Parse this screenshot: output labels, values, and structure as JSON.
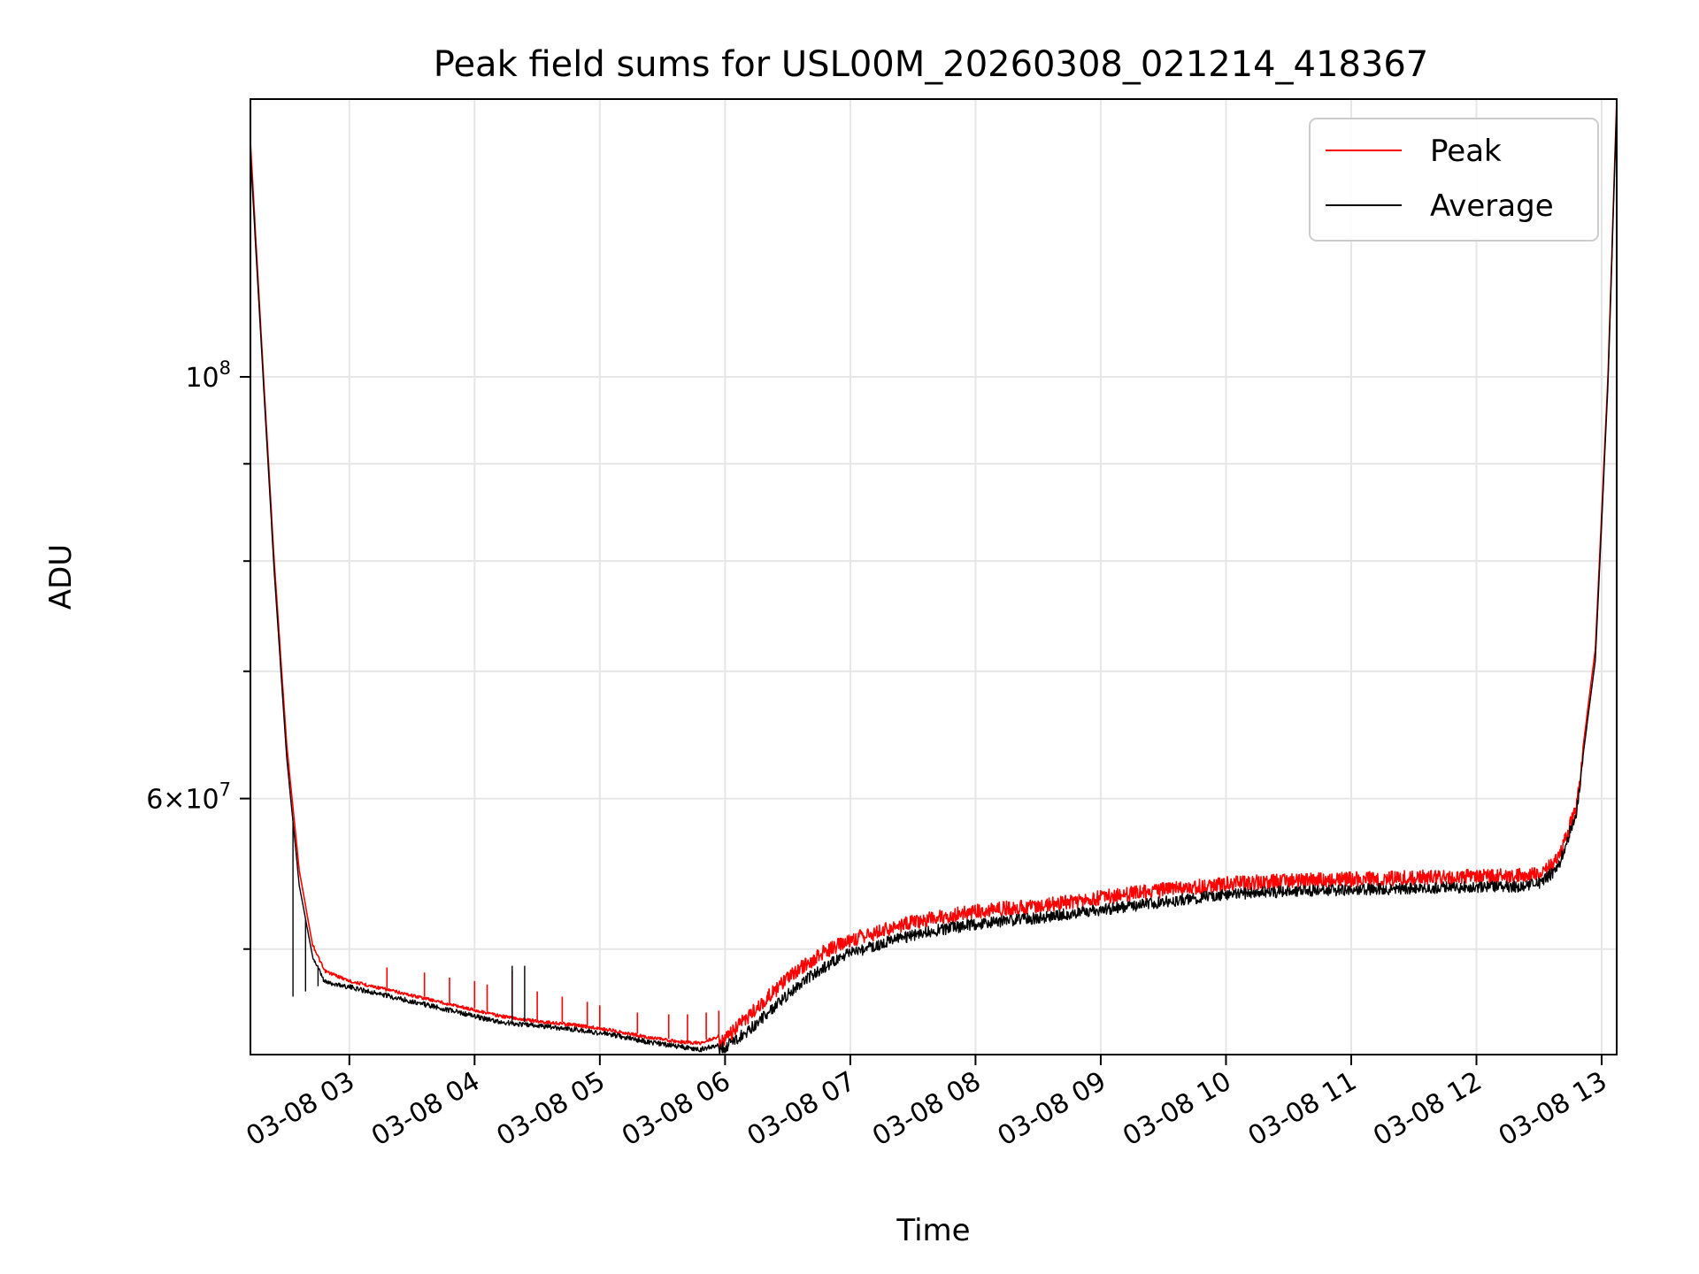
{
  "chart_data": {
    "type": "line",
    "title": "Peak field sums for USL00M_20260308_021214_418367",
    "xlabel": "Time",
    "ylabel": "ADU",
    "yscale": "log",
    "grid": true,
    "legend_location": "top-right",
    "x_unit": "hour of 2026-03-08",
    "xlim": [
      2.21,
      13.12
    ],
    "ylim": [
      44000000,
      140000000
    ],
    "x_ticks": [
      {
        "value": 3,
        "label": "03-08 03"
      },
      {
        "value": 4,
        "label": "03-08 04"
      },
      {
        "value": 5,
        "label": "03-08 05"
      },
      {
        "value": 6,
        "label": "03-08 06"
      },
      {
        "value": 7,
        "label": "03-08 07"
      },
      {
        "value": 8,
        "label": "03-08 08"
      },
      {
        "value": 9,
        "label": "03-08 09"
      },
      {
        "value": 10,
        "label": "03-08 10"
      },
      {
        "value": 11,
        "label": "03-08 11"
      },
      {
        "value": 12,
        "label": "03-08 12"
      },
      {
        "value": 13,
        "label": "03-08 13"
      }
    ],
    "y_major_ticks": [
      {
        "value": 60000000,
        "base": "6×10",
        "exp": "7"
      },
      {
        "value": 100000000,
        "base": "10",
        "exp": "8"
      }
    ],
    "y_minor_ticks": [
      50000000,
      70000000,
      80000000,
      90000000
    ],
    "series": [
      {
        "name": "Peak",
        "color": "#ff0000",
        "x": [
          2.21,
          2.3,
          2.4,
          2.5,
          2.6,
          2.7,
          2.8,
          3.0,
          3.3,
          3.6,
          3.9,
          4.2,
          4.5,
          4.8,
          5.1,
          5.4,
          5.6,
          5.8,
          6.0,
          6.2,
          6.4,
          6.6,
          6.8,
          7.0,
          7.3,
          7.6,
          8.0,
          8.5,
          9.0,
          9.5,
          10.0,
          10.5,
          11.0,
          11.5,
          12.0,
          12.3,
          12.5,
          12.65,
          12.8,
          12.95,
          13.05,
          13.12
        ],
        "values": [
          133000000,
          104000000,
          80000000,
          64000000,
          55000000,
          50500000,
          48800000,
          48200000,
          47700000,
          47200000,
          46700000,
          46200000,
          45900000,
          45700000,
          45400000,
          45000000,
          44800000,
          44700000,
          45200000,
          46600000,
          48000000,
          49300000,
          50300000,
          51000000,
          51700000,
          52300000,
          52800000,
          53200000,
          53700000,
          54200000,
          54600000,
          54800000,
          54900000,
          55000000,
          55100000,
          55100000,
          55300000,
          56200000,
          60000000,
          72000000,
          100000000,
          140000000
        ],
        "spikes": [
          [
            3.3,
            48900000
          ],
          [
            3.6,
            48600000
          ],
          [
            3.8,
            48300000
          ],
          [
            4.0,
            48100000
          ],
          [
            4.1,
            47900000
          ],
          [
            4.3,
            48700000
          ],
          [
            4.5,
            47500000
          ],
          [
            4.7,
            47200000
          ],
          [
            4.9,
            46900000
          ],
          [
            5.0,
            46700000
          ],
          [
            5.3,
            46300000
          ],
          [
            5.55,
            46200000
          ],
          [
            5.7,
            46200000
          ],
          [
            5.85,
            46300000
          ],
          [
            5.95,
            46400000
          ]
        ]
      },
      {
        "name": "Average",
        "color": "#000000",
        "x": [
          2.21,
          2.3,
          2.4,
          2.5,
          2.6,
          2.7,
          2.8,
          3.0,
          3.3,
          3.6,
          3.9,
          4.2,
          4.5,
          4.8,
          5.1,
          5.4,
          5.6,
          5.8,
          6.0,
          6.2,
          6.4,
          6.6,
          6.8,
          7.0,
          7.3,
          7.6,
          8.0,
          8.5,
          9.0,
          9.5,
          10.0,
          10.5,
          11.0,
          11.5,
          12.0,
          12.3,
          12.5,
          12.65,
          12.8,
          12.95,
          13.05,
          13.12
        ],
        "values": [
          131000000,
          103000000,
          79000000,
          63000000,
          54000000,
          49800000,
          48200000,
          47900000,
          47400000,
          46900000,
          46400000,
          45900000,
          45700000,
          45500000,
          45200000,
          44800000,
          44600000,
          44400000,
          44700000,
          45700000,
          47000000,
          48300000,
          49300000,
          50100000,
          50800000,
          51400000,
          51900000,
          52300000,
          52800000,
          53300000,
          53800000,
          54000000,
          54100000,
          54200000,
          54300000,
          54300000,
          54500000,
          55500000,
          59500000,
          71000000,
          99000000,
          139000000
        ],
        "spikes": [
          [
            2.55,
            47200000
          ],
          [
            2.65,
            47500000
          ],
          [
            2.75,
            47800000
          ],
          [
            4.05,
            46000000
          ],
          [
            4.3,
            49000000
          ],
          [
            4.4,
            49000000
          ]
        ]
      }
    ]
  }
}
